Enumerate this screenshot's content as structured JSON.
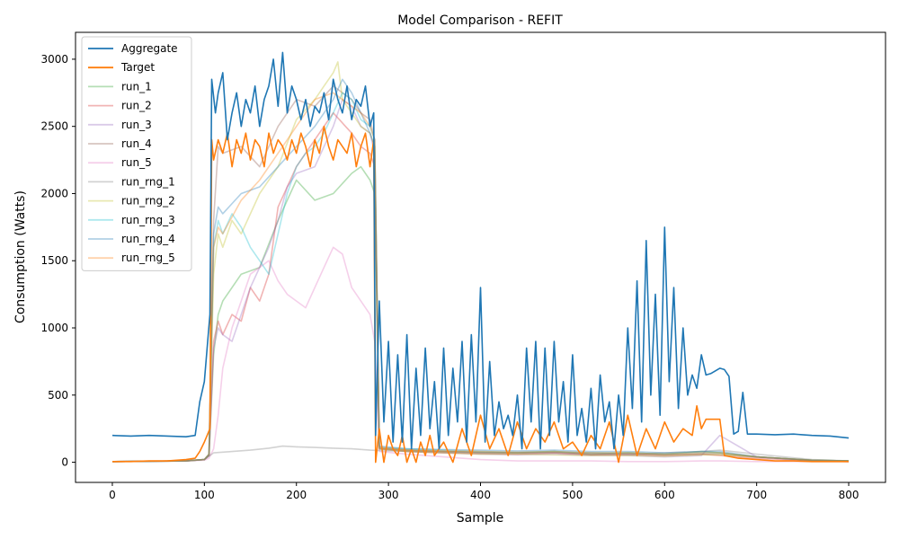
{
  "chart_data": {
    "type": "line",
    "title": "Model Comparison - REFIT",
    "xlabel": "Sample",
    "ylabel": "Consumption (Watts)",
    "xlim": [
      -40,
      840
    ],
    "ylim": [
      -150,
      3200
    ],
    "xticks": [
      0,
      100,
      200,
      300,
      400,
      500,
      600,
      700,
      800
    ],
    "yticks": [
      0,
      500,
      1000,
      1500,
      2000,
      2500,
      3000
    ],
    "grid": false,
    "legend_position": "top-left",
    "series": [
      {
        "name": "Aggregate",
        "color": "#1f77b4",
        "opacity": 1,
        "x": [
          0,
          20,
          40,
          60,
          80,
          90,
          95,
          100,
          103,
          106,
          108,
          112,
          115,
          120,
          125,
          130,
          135,
          140,
          145,
          150,
          155,
          160,
          165,
          170,
          175,
          180,
          185,
          190,
          195,
          200,
          205,
          210,
          215,
          220,
          225,
          230,
          235,
          240,
          245,
          250,
          255,
          260,
          265,
          270,
          275,
          280,
          284,
          286,
          290,
          295,
          300,
          305,
          310,
          315,
          320,
          325,
          330,
          335,
          340,
          345,
          350,
          355,
          360,
          365,
          370,
          375,
          380,
          385,
          390,
          395,
          400,
          405,
          410,
          415,
          420,
          425,
          430,
          435,
          440,
          445,
          450,
          455,
          460,
          465,
          470,
          475,
          480,
          485,
          490,
          495,
          500,
          505,
          510,
          515,
          520,
          525,
          530,
          535,
          540,
          545,
          550,
          555,
          560,
          565,
          570,
          575,
          580,
          585,
          590,
          595,
          600,
          605,
          610,
          615,
          620,
          625,
          630,
          635,
          640,
          645,
          650,
          655,
          660,
          665,
          670,
          675,
          680,
          685,
          690,
          700,
          720,
          740,
          760,
          780,
          800
        ],
        "y": [
          200,
          195,
          200,
          195,
          190,
          200,
          450,
          600,
          850,
          1100,
          2850,
          2600,
          2750,
          2900,
          2400,
          2600,
          2750,
          2500,
          2700,
          2600,
          2800,
          2500,
          2700,
          2800,
          3000,
          2650,
          3050,
          2600,
          2800,
          2700,
          2550,
          2700,
          2500,
          2650,
          2600,
          2750,
          2550,
          2850,
          2700,
          2600,
          2800,
          2550,
          2700,
          2650,
          2800,
          2500,
          2600,
          200,
          1200,
          300,
          900,
          150,
          800,
          150,
          950,
          100,
          700,
          200,
          850,
          250,
          600,
          100,
          850,
          200,
          700,
          300,
          900,
          150,
          950,
          300,
          1300,
          150,
          750,
          200,
          450,
          250,
          350,
          200,
          500,
          100,
          850,
          300,
          900,
          100,
          850,
          200,
          900,
          300,
          600,
          150,
          800,
          200,
          400,
          150,
          550,
          100,
          650,
          300,
          450,
          100,
          500,
          200,
          1000,
          400,
          1350,
          300,
          1650,
          500,
          1250,
          350,
          1750,
          600,
          1300,
          400,
          1000,
          500,
          650,
          550,
          800,
          650,
          660,
          680,
          700,
          690,
          640,
          210,
          230,
          520,
          210,
          210,
          205,
          210,
          200,
          195,
          180
        ]
      },
      {
        "name": "Target",
        "color": "#ff7f0e",
        "opacity": 1,
        "x": [
          0,
          20,
          40,
          60,
          80,
          90,
          95,
          100,
          103,
          106,
          108,
          110,
          115,
          120,
          125,
          130,
          135,
          140,
          145,
          150,
          155,
          160,
          165,
          170,
          175,
          180,
          185,
          190,
          195,
          200,
          205,
          210,
          215,
          220,
          225,
          230,
          235,
          240,
          245,
          250,
          255,
          260,
          265,
          270,
          275,
          280,
          284,
          286,
          290,
          295,
          300,
          305,
          310,
          315,
          320,
          325,
          330,
          335,
          340,
          345,
          350,
          355,
          360,
          370,
          380,
          390,
          400,
          410,
          420,
          430,
          440,
          450,
          460,
          470,
          480,
          490,
          500,
          510,
          520,
          530,
          540,
          550,
          560,
          570,
          580,
          590,
          600,
          610,
          620,
          630,
          635,
          640,
          645,
          650,
          655,
          660,
          665,
          680,
          700,
          720,
          740,
          760,
          780,
          800
        ],
        "y": [
          5,
          5,
          10,
          10,
          20,
          30,
          80,
          150,
          200,
          250,
          2400,
          2250,
          2400,
          2300,
          2450,
          2200,
          2400,
          2300,
          2450,
          2250,
          2400,
          2350,
          2200,
          2450,
          2300,
          2400,
          2350,
          2250,
          2400,
          2300,
          2450,
          2350,
          2200,
          2400,
          2300,
          2500,
          2350,
          2250,
          2400,
          2350,
          2300,
          2450,
          2200,
          2350,
          2450,
          2200,
          2400,
          0,
          250,
          0,
          200,
          100,
          50,
          200,
          0,
          100,
          0,
          150,
          50,
          200,
          50,
          100,
          150,
          0,
          250,
          50,
          350,
          100,
          250,
          50,
          300,
          100,
          250,
          150,
          300,
          100,
          150,
          50,
          200,
          100,
          300,
          0,
          350,
          50,
          250,
          100,
          300,
          150,
          250,
          200,
          420,
          250,
          320,
          320,
          320,
          320,
          50,
          30,
          20,
          10,
          10,
          5,
          5,
          5
        ]
      },
      {
        "name": "run_1",
        "color": "#2ca02c",
        "opacity": 0.35,
        "x": [
          0,
          80,
          100,
          105,
          110,
          115,
          120,
          140,
          160,
          180,
          200,
          220,
          240,
          260,
          270,
          280,
          285,
          290,
          320,
          360,
          400,
          440,
          480,
          520,
          560,
          600,
          640,
          660,
          700,
          760,
          800
        ],
        "y": [
          5,
          10,
          20,
          50,
          800,
          1100,
          1200,
          1400,
          1450,
          1800,
          2100,
          1950,
          2000,
          2150,
          2200,
          2100,
          2000,
          100,
          90,
          80,
          75,
          70,
          80,
          60,
          70,
          60,
          80,
          70,
          40,
          15,
          10
        ]
      },
      {
        "name": "run_2",
        "color": "#d62728",
        "opacity": 0.35,
        "x": [
          0,
          80,
          100,
          105,
          110,
          115,
          120,
          130,
          140,
          150,
          160,
          170,
          180,
          200,
          220,
          240,
          260,
          270,
          280,
          285,
          290,
          320,
          360,
          400,
          440,
          480,
          520,
          560,
          600,
          640,
          660,
          700,
          760,
          800
        ],
        "y": [
          5,
          10,
          20,
          50,
          900,
          1050,
          950,
          1100,
          1050,
          1300,
          1200,
          1400,
          1900,
          2200,
          2400,
          2600,
          2450,
          2350,
          2300,
          2200,
          100,
          80,
          70,
          65,
          60,
          70,
          55,
          60,
          50,
          60,
          50,
          30,
          10,
          5
        ]
      },
      {
        "name": "run_3",
        "color": "#9467bd",
        "opacity": 0.35,
        "x": [
          0,
          80,
          100,
          105,
          110,
          115,
          120,
          130,
          140,
          150,
          160,
          170,
          180,
          190,
          200,
          220,
          240,
          250,
          260,
          270,
          280,
          285,
          290,
          320,
          360,
          400,
          440,
          480,
          520,
          560,
          600,
          640,
          660,
          700,
          760,
          800
        ],
        "y": [
          5,
          10,
          20,
          50,
          850,
          1000,
          950,
          900,
          1100,
          1300,
          1450,
          1600,
          1800,
          2050,
          2150,
          2200,
          2500,
          2700,
          2650,
          2500,
          2450,
          2300,
          100,
          80,
          70,
          60,
          55,
          60,
          50,
          50,
          40,
          50,
          200,
          40,
          10,
          5
        ]
      },
      {
        "name": "run_4",
        "color": "#8c564b",
        "opacity": 0.35,
        "x": [
          0,
          80,
          100,
          105,
          110,
          115,
          120,
          140,
          160,
          180,
          200,
          220,
          240,
          260,
          270,
          280,
          285,
          290,
          320,
          360,
          400,
          440,
          480,
          520,
          560,
          600,
          640,
          660,
          700,
          760,
          800
        ],
        "y": [
          5,
          10,
          20,
          60,
          1800,
          2350,
          2300,
          2350,
          2200,
          2500,
          2700,
          2650,
          2800,
          2700,
          2600,
          2550,
          2400,
          110,
          90,
          80,
          75,
          70,
          70,
          60,
          60,
          55,
          60,
          60,
          40,
          15,
          10
        ]
      },
      {
        "name": "run_5",
        "color": "#e377c2",
        "opacity": 0.35,
        "x": [
          0,
          80,
          100,
          105,
          110,
          115,
          120,
          130,
          140,
          150,
          160,
          170,
          180,
          190,
          200,
          210,
          220,
          230,
          240,
          250,
          260,
          270,
          280,
          285,
          290,
          320,
          360,
          400,
          440,
          480,
          520,
          560,
          600,
          640,
          660,
          700,
          760,
          800
        ],
        "y": [
          5,
          10,
          15,
          30,
          100,
          350,
          700,
          1000,
          1200,
          1400,
          1450,
          1500,
          1350,
          1250,
          1200,
          1150,
          1300,
          1450,
          1600,
          1550,
          1300,
          1200,
          1100,
          900,
          80,
          60,
          40,
          20,
          10,
          10,
          10,
          5,
          5,
          10,
          10,
          5,
          5,
          5
        ]
      },
      {
        "name": "run_rng_1",
        "color": "#7f7f7f",
        "opacity": 0.35,
        "x": [
          0,
          60,
          100,
          110,
          130,
          150,
          170,
          185,
          200,
          220,
          240,
          260,
          280,
          300,
          330,
          360,
          400,
          440,
          480,
          520,
          560,
          600,
          640,
          660,
          700,
          760,
          800
        ],
        "y": [
          5,
          10,
          20,
          70,
          80,
          90,
          105,
          120,
          115,
          110,
          105,
          100,
          90,
          85,
          80,
          80,
          70,
          70,
          75,
          70,
          60,
          70,
          80,
          90,
          60,
          20,
          10
        ]
      },
      {
        "name": "run_rng_2",
        "color": "#bcbd22",
        "opacity": 0.35,
        "x": [
          0,
          80,
          100,
          105,
          110,
          115,
          120,
          130,
          140,
          160,
          180,
          200,
          220,
          230,
          240,
          245,
          250,
          260,
          270,
          280,
          285,
          290,
          320,
          360,
          400,
          440,
          480,
          520,
          560,
          600,
          640,
          660,
          700,
          760,
          800
        ],
        "y": [
          5,
          10,
          20,
          60,
          1400,
          1700,
          1600,
          1800,
          1700,
          2000,
          2200,
          2550,
          2700,
          2800,
          2900,
          2980,
          2700,
          2600,
          2500,
          2450,
          2350,
          100,
          80,
          70,
          60,
          60,
          55,
          50,
          50,
          45,
          55,
          55,
          40,
          15,
          10
        ]
      },
      {
        "name": "run_rng_3",
        "color": "#17becf",
        "opacity": 0.35,
        "x": [
          0,
          80,
          100,
          105,
          110,
          115,
          120,
          130,
          140,
          150,
          160,
          170,
          180,
          190,
          200,
          210,
          220,
          230,
          240,
          250,
          260,
          270,
          280,
          285,
          290,
          320,
          360,
          400,
          440,
          480,
          520,
          560,
          600,
          640,
          660,
          700,
          760,
          800
        ],
        "y": [
          5,
          10,
          20,
          60,
          1600,
          1800,
          1700,
          1850,
          1750,
          1600,
          1500,
          1400,
          1700,
          2000,
          2200,
          2300,
          2350,
          2450,
          2600,
          2750,
          2700,
          2550,
          2500,
          2400,
          110,
          100,
          90,
          80,
          75,
          80,
          70,
          70,
          60,
          70,
          70,
          40,
          15,
          10
        ]
      },
      {
        "name": "run_rng_4",
        "color": "#1f77b4",
        "opacity": 0.35,
        "x": [
          0,
          80,
          100,
          105,
          110,
          115,
          120,
          140,
          160,
          180,
          200,
          220,
          240,
          250,
          260,
          270,
          280,
          285,
          290,
          320,
          360,
          400,
          440,
          480,
          520,
          560,
          600,
          640,
          660,
          700,
          760,
          800
        ],
        "y": [
          5,
          10,
          20,
          60,
          1700,
          1900,
          1850,
          2000,
          2050,
          2200,
          2350,
          2500,
          2700,
          2850,
          2750,
          2600,
          2450,
          2350,
          120,
          100,
          95,
          90,
          85,
          90,
          80,
          80,
          70,
          80,
          80,
          40,
          15,
          10
        ]
      },
      {
        "name": "run_rng_5",
        "color": "#ff7f0e",
        "opacity": 0.35,
        "x": [
          0,
          80,
          100,
          105,
          110,
          115,
          120,
          140,
          160,
          180,
          200,
          220,
          240,
          260,
          270,
          280,
          285,
          290,
          320,
          360,
          400,
          440,
          480,
          520,
          560,
          600,
          640,
          660,
          700,
          760,
          800
        ],
        "y": [
          5,
          10,
          20,
          60,
          1600,
          1750,
          1700,
          1950,
          2100,
          2300,
          2500,
          2700,
          2750,
          2650,
          2600,
          2500,
          2400,
          110,
          90,
          85,
          80,
          75,
          80,
          70,
          70,
          60,
          70,
          70,
          40,
          15,
          10
        ]
      }
    ]
  }
}
